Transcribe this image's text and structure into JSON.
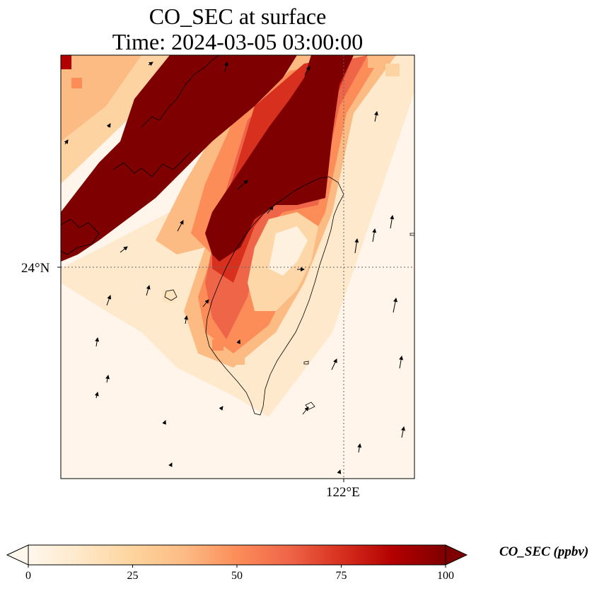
{
  "title": {
    "line1": "CO_SEC at surface",
    "line2": "Time: 2024-03-05 03:00:00"
  },
  "axes": {
    "latitude_tick": "24°N",
    "longitude_tick": "122°E"
  },
  "colorbar": {
    "label": "CO_SEC (ppbv)",
    "ticks": [
      "0",
      "25",
      "50",
      "75",
      "100"
    ],
    "min": 0,
    "max": 100,
    "extend": "both",
    "colormap": "OrRd",
    "colors": [
      "#fff7ec",
      "#fee8c8",
      "#fdd49e",
      "#fdbb84",
      "#fc8d59",
      "#ef6548",
      "#d7301f",
      "#b30000",
      "#7f0000"
    ]
  },
  "map": {
    "field": "CO_SEC",
    "level": "surface",
    "units": "ppbv",
    "gridlines": "dotted",
    "coastlines": true,
    "wind_vectors": true
  }
}
